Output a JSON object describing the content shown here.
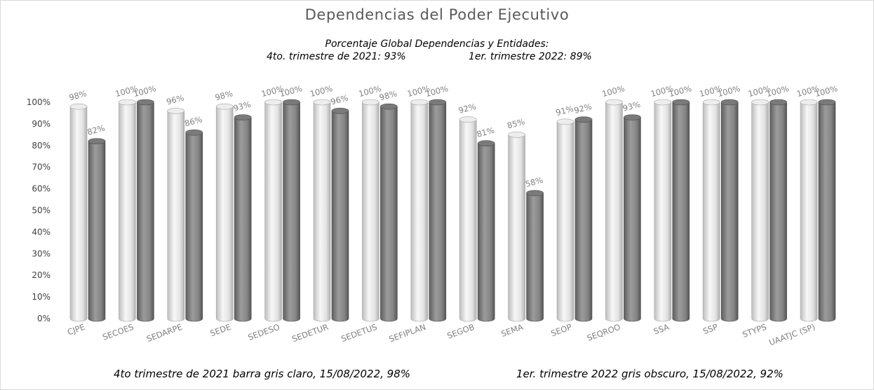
{
  "chart_data": {
    "type": "bar",
    "title": "Dependencias del Poder Ejecutivo",
    "subtitle_line1": "Porcentaje Global  Dependencias y Entidades:",
    "subtitle_left": "4to. trimestre de 2021: 93%",
    "subtitle_right": "1er. trimestre 2022: 89%",
    "categories": [
      "CJPE",
      "SECOES",
      "SEDARPE",
      "SEDE",
      "SEDESO",
      "SEDETUR",
      "SEDETUS",
      "SEFIPLAN",
      "SEGOB",
      "SEMA",
      "SEOP",
      "SEQROO",
      "SSA",
      "SSP",
      "STYPS",
      "UAATJC (SP)"
    ],
    "series": [
      {
        "name": "4to trimestre de 2021",
        "color": "#e6e6e6",
        "values": [
          98,
          100,
          96,
          98,
          100,
          100,
          100,
          100,
          92,
          85,
          91,
          100,
          100,
          100,
          100,
          100
        ],
        "labels": [
          "98%",
          "100%",
          "96%",
          "98%",
          "100%",
          "100%",
          "100%",
          "100%",
          "92%",
          "85%",
          "91%",
          "100%",
          "100%",
          "100%",
          "100%",
          "100%"
        ]
      },
      {
        "name": "1er. trimestre 2022",
        "color": "#8c8c8c",
        "values": [
          82,
          100,
          86,
          93,
          100,
          96,
          98,
          100,
          81,
          58,
          92,
          93,
          100,
          100,
          100,
          100
        ],
        "labels": [
          "82%",
          "100%",
          "86%",
          "93%",
          "100%",
          "96%",
          "98%",
          "100%",
          "81%",
          "58%",
          "92%",
          "93%",
          "100%",
          "100%",
          "100%",
          "100%"
        ]
      }
    ],
    "y_ticks": [
      "0%",
      "10%",
      "20%",
      "30%",
      "40%",
      "50%",
      "60%",
      "70%",
      "80%",
      "90%",
      "100%"
    ],
    "ylim": [
      0,
      100
    ],
    "xlabel": "",
    "ylabel": "",
    "grid": false
  },
  "footer": {
    "left": "4to trimestre de 2021 barra gris claro, 15/08/2022, 98%",
    "right": "1er. trimestre  2022 gris obscuro,   15/08/2022, 92%"
  }
}
